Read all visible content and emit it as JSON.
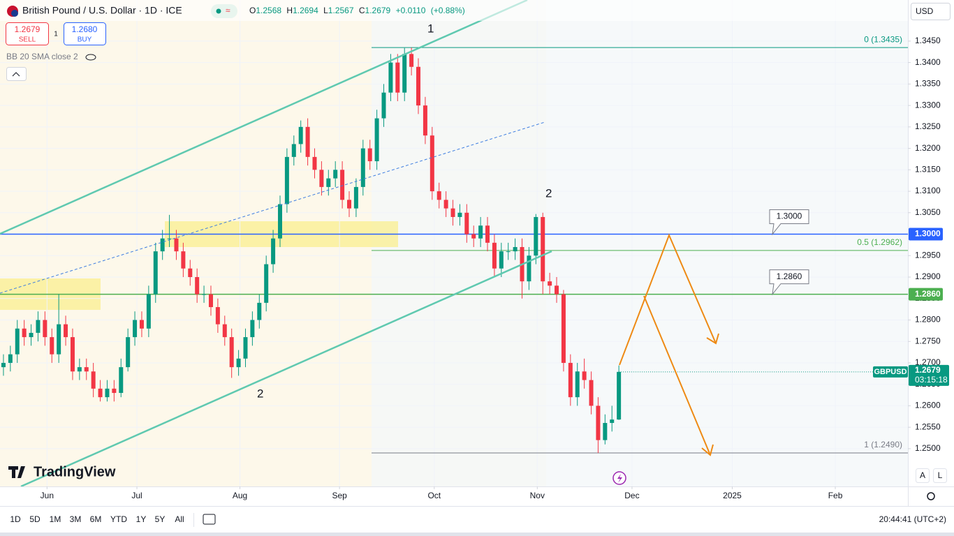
{
  "header": {
    "symbol": "British Pound / U.S. Dollar · 1D · ICE",
    "ohlc": [
      {
        "k": "O",
        "v": 1.2568
      },
      {
        "k": "H",
        "v": 1.2694
      },
      {
        "k": "L",
        "v": 1.2567
      },
      {
        "k": "C",
        "v": 1.2679
      }
    ],
    "change": "+0.0110",
    "change_pct": "(+0.88%)",
    "sell_price": "1.2679",
    "sell": "SELL",
    "spread": "1",
    "buy_price": "1.2680",
    "buy": "BUY",
    "indicator": "BB 20 SMA close 2",
    "currency": "USD"
  },
  "chart_data": {
    "type": "candlestick",
    "up_color": "#089981",
    "down_color": "#f23645",
    "categories": [
      null,
      null,
      null,
      null,
      null,
      null,
      null,
      null,
      null,
      null,
      null,
      null,
      null,
      null,
      null,
      null,
      null,
      null,
      null,
      null,
      null,
      null,
      null,
      null,
      null,
      null,
      null,
      null,
      null,
      null,
      null,
      null,
      null,
      null,
      null,
      null,
      null,
      null,
      null,
      null,
      null,
      null,
      null,
      null,
      null,
      null,
      null,
      null,
      null,
      null,
      null,
      null,
      null,
      null,
      null,
      null,
      null,
      null,
      null,
      null,
      null,
      null,
      null,
      null,
      null,
      null,
      null,
      null,
      null,
      null,
      null,
      null,
      null,
      null,
      null,
      null,
      null,
      null,
      null,
      null,
      null,
      null,
      null,
      null,
      null,
      null,
      null,
      null,
      null,
      null
    ],
    "open": [
      1.269,
      1.27,
      1.272,
      1.278,
      1.276,
      1.277,
      1.28,
      1.276,
      1.272,
      1.279,
      1.276,
      1.268,
      1.269,
      1.268,
      1.264,
      1.262,
      1.264,
      1.263,
      1.269,
      1.276,
      1.28,
      1.278,
      1.286,
      1.296,
      1.299,
      1.299,
      1.296,
      1.292,
      1.29,
      1.286,
      1.286,
      1.283,
      1.279,
      1.276,
      1.269,
      1.271,
      1.276,
      1.28,
      1.284,
      1.293,
      1.299,
      1.307,
      1.318,
      1.321,
      1.325,
      1.318,
      1.315,
      1.311,
      1.313,
      1.315,
      1.308,
      1.306,
      1.311,
      1.32,
      1.317,
      1.327,
      1.333,
      1.34,
      1.333,
      1.342,
      1.339,
      1.33,
      1.323,
      1.31,
      1.308,
      1.306,
      1.304,
      1.305,
      1.3,
      1.299,
      1.302,
      1.298,
      1.292,
      1.296,
      1.296,
      1.297,
      1.289,
      1.295,
      1.304,
      1.289,
      1.288,
      1.286,
      1.27,
      1.262,
      1.268,
      1.266,
      1.26,
      1.252,
      1.256,
      1.2568
    ],
    "high": [
      1.272,
      1.274,
      1.28,
      1.28,
      1.279,
      1.282,
      1.282,
      1.278,
      1.286,
      1.281,
      1.278,
      1.271,
      1.271,
      1.27,
      1.266,
      1.266,
      1.266,
      1.271,
      1.278,
      1.282,
      1.282,
      1.288,
      1.298,
      1.301,
      1.3045,
      1.301,
      1.298,
      1.294,
      1.292,
      1.288,
      1.288,
      1.285,
      1.281,
      1.278,
      1.273,
      1.278,
      1.282,
      1.286,
      1.295,
      1.301,
      1.309,
      1.32,
      1.323,
      1.3265,
      1.327,
      1.32,
      1.317,
      1.315,
      1.317,
      1.317,
      1.31,
      1.313,
      1.322,
      1.322,
      1.329,
      1.335,
      1.342,
      1.342,
      1.3434,
      1.3435,
      1.341,
      1.332,
      1.325,
      1.312,
      1.31,
      1.308,
      1.307,
      1.307,
      1.302,
      1.304,
      1.304,
      1.3,
      1.298,
      1.298,
      1.299,
      1.299,
      1.297,
      1.3047,
      1.305,
      1.291,
      1.29,
      1.287,
      1.272,
      1.27,
      1.271,
      1.268,
      1.262,
      1.258,
      1.26,
      1.2694
    ],
    "low": [
      1.267,
      1.268,
      1.27,
      1.274,
      1.274,
      1.275,
      1.274,
      1.27,
      1.27,
      1.274,
      1.266,
      1.266,
      1.266,
      1.262,
      1.261,
      1.261,
      1.261,
      1.262,
      1.268,
      1.274,
      1.276,
      1.276,
      1.284,
      1.294,
      1.297,
      1.294,
      1.29,
      1.288,
      1.284,
      1.284,
      1.281,
      1.277,
      1.274,
      1.2665,
      1.267,
      1.269,
      1.274,
      1.278,
      1.282,
      1.291,
      1.297,
      1.305,
      1.316,
      1.319,
      1.316,
      1.313,
      1.309,
      1.309,
      1.311,
      1.306,
      1.304,
      1.304,
      1.309,
      1.315,
      1.315,
      1.325,
      1.331,
      1.331,
      1.331,
      1.337,
      1.328,
      1.321,
      1.308,
      1.306,
      1.304,
      1.302,
      1.302,
      1.298,
      1.297,
      1.297,
      1.296,
      1.29,
      1.29,
      1.294,
      1.294,
      1.285,
      1.287,
      1.293,
      1.286,
      1.286,
      1.284,
      1.268,
      1.26,
      1.26,
      1.264,
      1.258,
      1.249,
      1.251,
      1.254,
      1.2567
    ],
    "close": [
      1.27,
      1.272,
      1.278,
      1.276,
      1.277,
      1.28,
      1.276,
      1.272,
      1.279,
      1.276,
      1.268,
      1.269,
      1.268,
      1.264,
      1.262,
      1.264,
      1.263,
      1.269,
      1.276,
      1.28,
      1.278,
      1.286,
      1.296,
      1.299,
      1.299,
      1.296,
      1.292,
      1.29,
      1.286,
      1.286,
      1.283,
      1.279,
      1.276,
      1.269,
      1.271,
      1.276,
      1.28,
      1.284,
      1.293,
      1.299,
      1.307,
      1.318,
      1.321,
      1.325,
      1.318,
      1.315,
      1.311,
      1.313,
      1.315,
      1.308,
      1.306,
      1.311,
      1.32,
      1.317,
      1.327,
      1.333,
      1.34,
      1.333,
      1.342,
      1.339,
      1.33,
      1.323,
      1.31,
      1.308,
      1.306,
      1.304,
      1.305,
      1.3,
      1.299,
      1.302,
      1.298,
      1.292,
      1.296,
      1.296,
      1.297,
      1.289,
      1.295,
      1.304,
      1.289,
      1.288,
      1.286,
      1.27,
      1.262,
      1.268,
      1.266,
      1.26,
      1.252,
      1.256,
      1.2568,
      1.2679
    ],
    "xlim": [
      -0.5,
      130.8
    ],
    "xticks": [
      {
        "value": 6.3,
        "label": "Jun"
      },
      {
        "value": 19.3,
        "label": "Jul"
      },
      {
        "value": 34.2,
        "label": "Aug"
      },
      {
        "value": 48.6,
        "label": "Sep"
      },
      {
        "value": 62.3,
        "label": "Oct"
      },
      {
        "value": 77.2,
        "label": "Nov"
      },
      {
        "value": 90.9,
        "label": "Dec"
      },
      {
        "value": 105.4,
        "label": "2025"
      },
      {
        "value": 120.3,
        "label": "Feb"
      }
    ],
    "ylim": [
      1.2412,
      1.3497
    ],
    "yticks": [
      {
        "value": 1.25,
        "label": "1.2500"
      },
      {
        "value": 1.255,
        "label": "1.2550"
      },
      {
        "value": 1.26,
        "label": "1.2600"
      },
      {
        "value": 1.265,
        "label": "1.2650"
      },
      {
        "value": 1.27,
        "label": "1.2700"
      },
      {
        "value": 1.275,
        "label": "1.2750"
      },
      {
        "value": 1.28,
        "label": "1.2800"
      },
      {
        "value": 1.285,
        "label": "1.2850"
      },
      {
        "value": 1.29,
        "label": "1.2900"
      },
      {
        "value": 1.295,
        "label": "1.2950"
      },
      {
        "value": 1.3,
        "label": "1.3000"
      },
      {
        "value": 1.305,
        "label": "1.3050"
      },
      {
        "value": 1.31,
        "label": "1.3100"
      },
      {
        "value": 1.315,
        "label": "1.3150"
      },
      {
        "value": 1.32,
        "label": "1.3200"
      },
      {
        "value": 1.325,
        "label": "1.3250"
      },
      {
        "value": 1.33,
        "label": "1.3300"
      },
      {
        "value": 1.335,
        "label": "1.3350"
      },
      {
        "value": 1.34,
        "label": "1.3400"
      },
      {
        "value": 1.345,
        "label": "1.3450"
      }
    ],
    "grid": true,
    "levels": [
      {
        "value": 1.3,
        "label": "1.3000",
        "color": "#2962ff"
      },
      {
        "value": 1.286,
        "label": "1.2860",
        "color": "#4caf50"
      }
    ],
    "fib": [
      {
        "value": 1.3435,
        "label": "0 (1.3435)",
        "color": "#089981"
      },
      {
        "value": 1.2962,
        "label": "0.5 (1.2962)",
        "color": "#4caf50"
      },
      {
        "value": 1.249,
        "label": "1 (1.2490)",
        "color": "#787b86"
      }
    ],
    "last": {
      "symbol": "GBPUSD",
      "value": 1.2679,
      "countdown": "03:15:18"
    },
    "annotations": [
      "1",
      "2",
      "2"
    ]
  },
  "toolbar": {
    "ranges": [
      "1D",
      "5D",
      "1M",
      "3M",
      "6M",
      "YTD",
      "1Y",
      "5Y",
      "All"
    ],
    "clock": "20:44:41 (UTC+2)",
    "scale": [
      "A",
      "L"
    ],
    "logo": "TradingView"
  }
}
